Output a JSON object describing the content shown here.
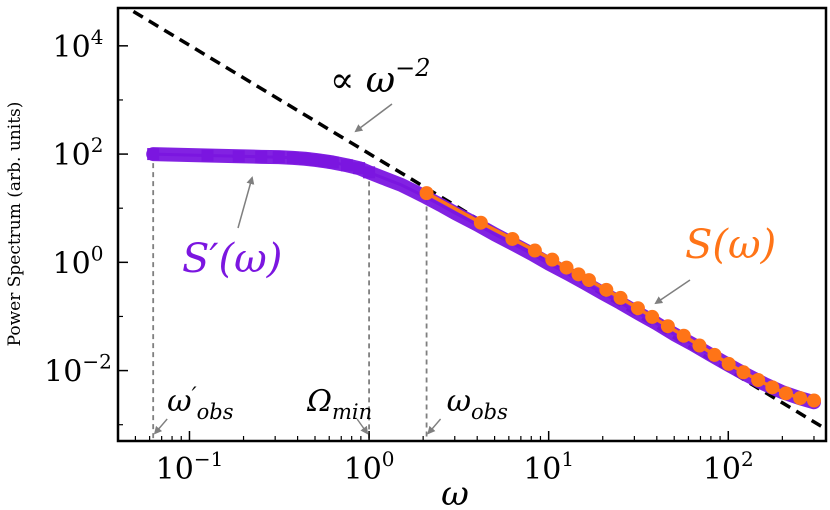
{
  "chart_data": {
    "type": "line",
    "xscale": "log",
    "yscale": "log",
    "xlim": [
      0.04,
      350
    ],
    "ylim": [
      0.0005,
      50000
    ],
    "xlabel": "ω",
    "ylabel": "Power Spectrum (arb. units)",
    "x_ticks": [
      {
        "value": 0.1,
        "base": "10",
        "exp": "−1"
      },
      {
        "value": 1,
        "base": "10",
        "exp": "0"
      },
      {
        "value": 10,
        "base": "10",
        "exp": "1"
      },
      {
        "value": 100,
        "base": "10",
        "exp": "2"
      }
    ],
    "y_ticks": [
      {
        "value": 0.01,
        "base": "10",
        "exp": "−2"
      },
      {
        "value": 1,
        "base": "10",
        "exp": "0"
      },
      {
        "value": 100,
        "base": "10",
        "exp": "2"
      },
      {
        "value": 10000,
        "base": "10",
        "exp": "4"
      }
    ],
    "grid": false,
    "series": [
      {
        "name": "S′(ω)",
        "color": "#7b16e0",
        "marker": "square",
        "x": [
          0.0628,
          0.126,
          0.188,
          0.251,
          0.314,
          0.377,
          0.44,
          0.503,
          0.565,
          0.628,
          0.754,
          0.88,
          1.0,
          1.26,
          1.51,
          1.76,
          2.0,
          2.5,
          3.0,
          4.0,
          5.0,
          6.5,
          8.0,
          10,
          13,
          16,
          20,
          25,
          32,
          40,
          50,
          63,
          80,
          100,
          125,
          160,
          200,
          250,
          300
        ],
        "y": [
          100,
          94,
          91,
          89,
          88,
          85,
          82,
          78,
          74,
          70,
          62,
          55,
          46,
          34,
          27,
          21,
          17,
          11.5,
          8.2,
          5.0,
          3.3,
          2.1,
          1.45,
          0.95,
          0.6,
          0.41,
          0.27,
          0.18,
          0.112,
          0.074,
          0.047,
          0.031,
          0.0195,
          0.0128,
          0.0085,
          0.0056,
          0.004,
          0.0031,
          0.0026
        ]
      },
      {
        "name": "S(ω)",
        "color": "#ff7417",
        "marker": "circle",
        "x": [
          2.09,
          4.19,
          6.28,
          8.38,
          10.47,
          12.57,
          14.66,
          16.76,
          20.94,
          25.13,
          31.4,
          37.7,
          46.1,
          56.5,
          69.1,
          83.8,
          100.5,
          121.5,
          146.6,
          175.9,
          209.4,
          251.3,
          300.0
        ],
        "y": [
          19,
          5.4,
          2.7,
          1.65,
          1.12,
          0.8,
          0.6,
          0.47,
          0.31,
          0.22,
          0.142,
          0.098,
          0.066,
          0.044,
          0.029,
          0.0195,
          0.0133,
          0.0093,
          0.0067,
          0.0049,
          0.0038,
          0.0031,
          0.0028
        ]
      },
      {
        "name": "∝ ω^−2",
        "color": "#000000",
        "style": "dashed",
        "x": [
          0.04,
          350
        ],
        "y": [
          64000,
          0.00083
        ]
      }
    ],
    "vlines": [
      {
        "x": 0.0628,
        "label_main": "ω",
        "label_prime": "′",
        "label_sub": "obs"
      },
      {
        "x": 1.0,
        "label_main": "Ω",
        "label_prime": "",
        "label_sub": "min"
      },
      {
        "x": 2.09,
        "label_main": "ω",
        "label_prime": "",
        "label_sub": "obs"
      }
    ],
    "annotations": [
      {
        "text_prefix": "∝ ω",
        "text_sup": "−2"
      },
      {
        "text": "S′(ω)",
        "color": "#7b16e0"
      },
      {
        "text": "S(ω)",
        "color": "#ff7417"
      }
    ]
  }
}
